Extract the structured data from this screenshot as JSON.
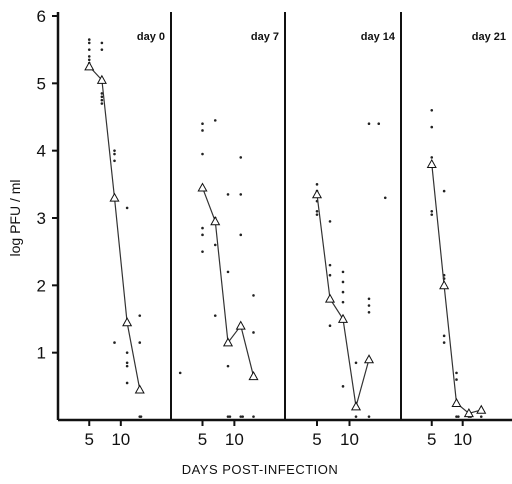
{
  "chart_data": {
    "type": "scatter",
    "xlabel": "DAYS POST-INFECTION",
    "ylabel": "log PFU / ml",
    "ylim": [
      0,
      6
    ],
    "yticks": [
      1,
      2,
      3,
      4,
      5,
      6
    ],
    "ytick_labels": [
      "1",
      "2",
      "3",
      "4",
      "5",
      "6"
    ],
    "grid": false,
    "legend": "none",
    "line_color": "#333333",
    "marker": "open-triangle",
    "panels": [
      {
        "label": "day 0",
        "xlim": [
          1,
          17
        ],
        "xticks": [
          5,
          10
        ],
        "xtick_labels": [
          "5",
          "10"
        ],
        "mean_line": [
          {
            "x": 5,
            "y": 5.25
          },
          {
            "x": 7,
            "y": 5.05
          },
          {
            "x": 9,
            "y": 3.3
          },
          {
            "x": 11,
            "y": 1.45
          },
          {
            "x": 13,
            "y": 0.45
          }
        ],
        "points": [
          {
            "x": 5,
            "y": 5.65
          },
          {
            "x": 5,
            "y": 5.6
          },
          {
            "x": 5,
            "y": 5.5
          },
          {
            "x": 5,
            "y": 5.4
          },
          {
            "x": 5,
            "y": 5.35
          },
          {
            "x": 5,
            "y": 5.3
          },
          {
            "x": 7,
            "y": 5.6
          },
          {
            "x": 7,
            "y": 5.5
          },
          {
            "x": 7,
            "y": 4.85
          },
          {
            "x": 7,
            "y": 4.8
          },
          {
            "x": 7,
            "y": 4.75
          },
          {
            "x": 7,
            "y": 4.7
          },
          {
            "x": 9,
            "y": 4.0
          },
          {
            "x": 9,
            "y": 3.95
          },
          {
            "x": 9,
            "y": 3.85
          },
          {
            "x": 9,
            "y": 3.3
          },
          {
            "x": 9,
            "y": 1.15
          },
          {
            "x": 11,
            "y": 3.15
          },
          {
            "x": 11,
            "y": 1.45
          },
          {
            "x": 11,
            "y": 1.0
          },
          {
            "x": 11,
            "y": 0.85
          },
          {
            "x": 11,
            "y": 0.8
          },
          {
            "x": 11,
            "y": 0.55
          },
          {
            "x": 13,
            "y": 1.55
          },
          {
            "x": 13,
            "y": 1.15
          },
          {
            "x": 13,
            "y": 0.05
          },
          {
            "x": 13.2,
            "y": 0.05
          }
        ]
      },
      {
        "label": "day 7",
        "xlim": [
          1,
          17
        ],
        "xticks": [
          5,
          10
        ],
        "xtick_labels": [
          "5",
          "10"
        ],
        "mean_line": [
          {
            "x": 5,
            "y": 3.45
          },
          {
            "x": 7,
            "y": 2.95
          },
          {
            "x": 9,
            "y": 1.15
          },
          {
            "x": 11,
            "y": 1.4
          },
          {
            "x": 13,
            "y": 0.65
          }
        ],
        "points": [
          {
            "x": 1.5,
            "y": 0.7
          },
          {
            "x": 5,
            "y": 4.4
          },
          {
            "x": 5,
            "y": 4.3
          },
          {
            "x": 5,
            "y": 3.95
          },
          {
            "x": 5,
            "y": 2.85
          },
          {
            "x": 5,
            "y": 2.75
          },
          {
            "x": 5,
            "y": 2.5
          },
          {
            "x": 7,
            "y": 4.45
          },
          {
            "x": 7,
            "y": 3.0
          },
          {
            "x": 7,
            "y": 2.6
          },
          {
            "x": 7,
            "y": 1.55
          },
          {
            "x": 9,
            "y": 3.35
          },
          {
            "x": 9,
            "y": 2.2
          },
          {
            "x": 9,
            "y": 1.15
          },
          {
            "x": 9,
            "y": 0.8
          },
          {
            "x": 9,
            "y": 0.05
          },
          {
            "x": 9.3,
            "y": 0.05
          },
          {
            "x": 11,
            "y": 3.9
          },
          {
            "x": 11,
            "y": 3.35
          },
          {
            "x": 11,
            "y": 2.75
          },
          {
            "x": 11,
            "y": 0.05
          },
          {
            "x": 11.3,
            "y": 0.05
          },
          {
            "x": 13,
            "y": 1.85
          },
          {
            "x": 13,
            "y": 1.3
          },
          {
            "x": 13,
            "y": 0.05
          }
        ]
      },
      {
        "label": "day 14",
        "xlim": [
          1,
          17
        ],
        "xticks": [
          5,
          10
        ],
        "xtick_labels": [
          "5",
          "10"
        ],
        "mean_line": [
          {
            "x": 5,
            "y": 3.35
          },
          {
            "x": 7,
            "y": 1.8
          },
          {
            "x": 9,
            "y": 1.5
          },
          {
            "x": 11,
            "y": 0.2
          },
          {
            "x": 13,
            "y": 0.9
          }
        ],
        "points": [
          {
            "x": 5,
            "y": 3.5
          },
          {
            "x": 5,
            "y": 3.4
          },
          {
            "x": 5,
            "y": 3.25
          },
          {
            "x": 5,
            "y": 3.1
          },
          {
            "x": 5,
            "y": 3.05
          },
          {
            "x": 7,
            "y": 2.95
          },
          {
            "x": 7,
            "y": 2.3
          },
          {
            "x": 7,
            "y": 2.15
          },
          {
            "x": 7,
            "y": 1.4
          },
          {
            "x": 9,
            "y": 2.2
          },
          {
            "x": 9,
            "y": 2.05
          },
          {
            "x": 9,
            "y": 1.9
          },
          {
            "x": 9,
            "y": 1.75
          },
          {
            "x": 9,
            "y": 0.5
          },
          {
            "x": 11,
            "y": 0.85
          },
          {
            "x": 11,
            "y": 0.05
          },
          {
            "x": 13,
            "y": 4.4
          },
          {
            "x": 13,
            "y": 1.8
          },
          {
            "x": 13,
            "y": 1.7
          },
          {
            "x": 13,
            "y": 1.6
          },
          {
            "x": 13,
            "y": 0.05
          },
          {
            "x": 14.5,
            "y": 4.4
          },
          {
            "x": 15.5,
            "y": 3.3
          }
        ]
      },
      {
        "label": "day 21",
        "xlim": [
          1,
          17
        ],
        "xticks": [
          5,
          10
        ],
        "xtick_labels": [
          "5",
          "10"
        ],
        "mean_line": [
          {
            "x": 5,
            "y": 3.8
          },
          {
            "x": 7,
            "y": 2.0
          },
          {
            "x": 9,
            "y": 0.25
          },
          {
            "x": 11,
            "y": 0.1
          },
          {
            "x": 13,
            "y": 0.15
          }
        ],
        "points": [
          {
            "x": 5,
            "y": 4.6
          },
          {
            "x": 5,
            "y": 4.35
          },
          {
            "x": 5,
            "y": 3.9
          },
          {
            "x": 5,
            "y": 3.1
          },
          {
            "x": 5,
            "y": 3.05
          },
          {
            "x": 7,
            "y": 3.4
          },
          {
            "x": 7,
            "y": 2.15
          },
          {
            "x": 7,
            "y": 2.1
          },
          {
            "x": 7,
            "y": 1.25
          },
          {
            "x": 7,
            "y": 1.15
          },
          {
            "x": 9,
            "y": 0.7
          },
          {
            "x": 9,
            "y": 0.6
          },
          {
            "x": 9,
            "y": 0.05
          },
          {
            "x": 9.3,
            "y": 0.05
          },
          {
            "x": 11,
            "y": 0.05
          },
          {
            "x": 11.3,
            "y": 0.05
          },
          {
            "x": 13,
            "y": 0.05
          }
        ]
      }
    ]
  }
}
